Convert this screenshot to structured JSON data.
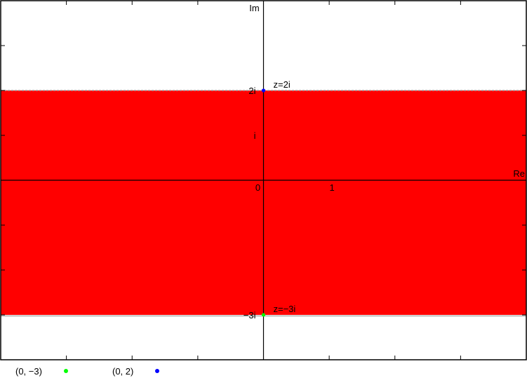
{
  "chart_data": {
    "type": "region",
    "xlabel": "Re",
    "ylabel": "Im",
    "xlim": [
      -4,
      4
    ],
    "ylim": [
      -4,
      4
    ],
    "grid": false,
    "region": {
      "y_min": -3,
      "y_max": 2,
      "fill_color": "#ff0000",
      "upper_boundary_style": "dashed",
      "lower_boundary_style": "solid"
    },
    "axis_tick_labels": {
      "origin": "0",
      "x": [
        {
          "x": 1,
          "label": "1"
        }
      ],
      "y": [
        {
          "y": 1,
          "label": "i"
        },
        {
          "y": 2,
          "label": "2i"
        },
        {
          "y": -3,
          "label": "−3i"
        }
      ]
    },
    "points": [
      {
        "x": 0,
        "y": 2,
        "label": "z=2i",
        "color": "#0000ff"
      },
      {
        "x": 0,
        "y": -3,
        "label": "z=−3i",
        "color": "#00ff00"
      }
    ]
  },
  "legend": [
    {
      "label": "(0, −3)",
      "color": "#00ff00"
    },
    {
      "label": "(0, 2)",
      "color": "#0000ff"
    }
  ]
}
